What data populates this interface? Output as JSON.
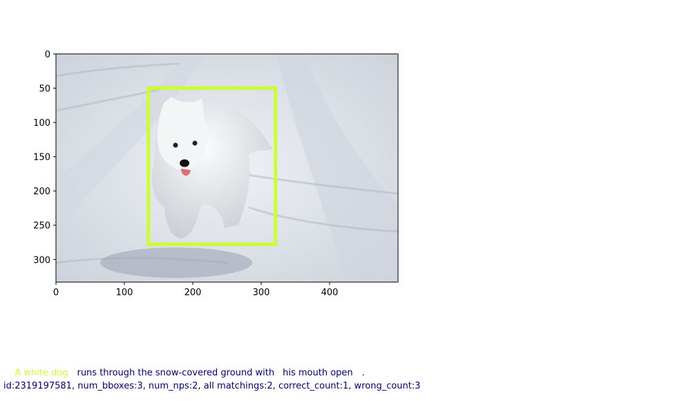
{
  "chart_data": {
    "type": "image-with-bbox",
    "image_size": [
      500,
      333
    ],
    "xlim": [
      0,
      500
    ],
    "ylim": [
      333,
      0
    ],
    "x_ticks": [
      0,
      100,
      200,
      300,
      400
    ],
    "y_ticks": [
      0,
      50,
      100,
      150,
      200,
      250,
      300
    ],
    "boxes": [
      {
        "x0": 135,
        "y0": 50,
        "x1": 321,
        "y1": 278,
        "color": "#ccff33"
      }
    ]
  },
  "caption": {
    "segments": [
      {
        "text": "A white dog",
        "color": "#ccff33"
      },
      {
        "text": "runs through the snow-covered ground with",
        "color": "#000080"
      },
      {
        "text": "his mouth open",
        "color": "#000080"
      },
      {
        "text": ".",
        "color": "#000080"
      }
    ]
  },
  "meta_line": "id:2319197581, num_bboxes:3, num_nps:2, all matchings:2, correct_count:1, wrong_count:3",
  "colors": {
    "box": "#ccff33",
    "text": "#000080",
    "snow": "#e4e8ee",
    "dog": "#f0f1f3"
  }
}
